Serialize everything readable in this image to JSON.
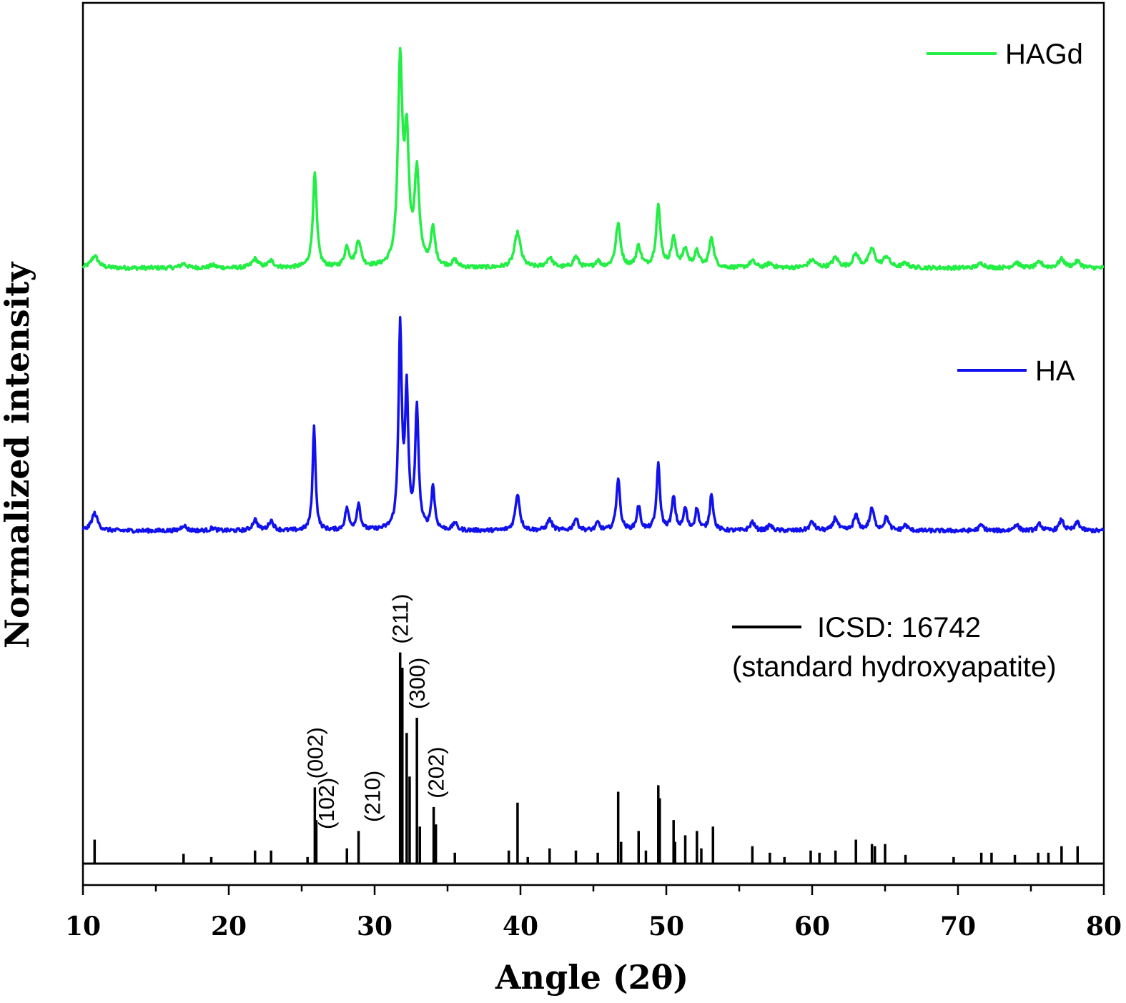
{
  "chart_data": {
    "type": "line",
    "xlabel": "Angle (2θ)",
    "ylabel": "Normalized intensity",
    "xlim": [
      10,
      80
    ],
    "xticks": [
      "10",
      "20",
      "30",
      "40",
      "50",
      "60",
      "70",
      "80"
    ],
    "ylim": [
      0,
      3.45
    ],
    "legend_position": "right",
    "series": [
      {
        "name": "HAGd",
        "legend": [
          "HAGd"
        ],
        "color": "#22ee44",
        "style": "line",
        "baseline": 2.38,
        "scale": 0.87,
        "peaks": [
          [
            10.8,
            0.055,
            0.3
          ],
          [
            16.9,
            0.02,
            0.25
          ],
          [
            18.9,
            0.012,
            0.25
          ],
          [
            21.8,
            0.04,
            0.25
          ],
          [
            22.9,
            0.03,
            0.25
          ],
          [
            25.9,
            0.43,
            0.16
          ],
          [
            28.1,
            0.09,
            0.2
          ],
          [
            28.9,
            0.12,
            0.2
          ],
          [
            31.75,
            0.92,
            0.18
          ],
          [
            32.2,
            0.55,
            0.18
          ],
          [
            32.9,
            0.42,
            0.2
          ],
          [
            34.0,
            0.17,
            0.18
          ],
          [
            35.5,
            0.03,
            0.2
          ],
          [
            39.8,
            0.16,
            0.25
          ],
          [
            42.0,
            0.045,
            0.25
          ],
          [
            43.8,
            0.05,
            0.22
          ],
          [
            45.3,
            0.03,
            0.2
          ],
          [
            46.7,
            0.2,
            0.2
          ],
          [
            48.1,
            0.095,
            0.2
          ],
          [
            49.45,
            0.28,
            0.18
          ],
          [
            50.5,
            0.13,
            0.2
          ],
          [
            51.3,
            0.08,
            0.2
          ],
          [
            52.1,
            0.07,
            0.2
          ],
          [
            53.1,
            0.14,
            0.18
          ],
          [
            55.9,
            0.03,
            0.25
          ],
          [
            57.1,
            0.02,
            0.25
          ],
          [
            60.0,
            0.035,
            0.3
          ],
          [
            61.6,
            0.045,
            0.25
          ],
          [
            63.0,
            0.06,
            0.25
          ],
          [
            64.1,
            0.085,
            0.25
          ],
          [
            65.1,
            0.05,
            0.25
          ],
          [
            66.4,
            0.02,
            0.25
          ],
          [
            71.6,
            0.02,
            0.3
          ],
          [
            74.0,
            0.025,
            0.25
          ],
          [
            75.6,
            0.025,
            0.25
          ],
          [
            77.1,
            0.04,
            0.25
          ],
          [
            78.2,
            0.03,
            0.25
          ]
        ]
      },
      {
        "name": "HA",
        "legend": [
          "HA"
        ],
        "color": "#1111ee",
        "style": "line",
        "baseline": 1.33,
        "scale": 0.87,
        "peaks": [
          [
            10.8,
            0.08,
            0.25
          ],
          [
            16.9,
            0.025,
            0.2
          ],
          [
            18.9,
            0.012,
            0.2
          ],
          [
            21.8,
            0.05,
            0.2
          ],
          [
            22.9,
            0.045,
            0.2
          ],
          [
            25.85,
            0.48,
            0.12
          ],
          [
            28.1,
            0.1,
            0.15
          ],
          [
            28.9,
            0.12,
            0.15
          ],
          [
            31.75,
            0.93,
            0.13
          ],
          [
            32.2,
            0.62,
            0.13
          ],
          [
            32.9,
            0.55,
            0.14
          ],
          [
            34.0,
            0.2,
            0.14
          ],
          [
            35.5,
            0.035,
            0.15
          ],
          [
            39.8,
            0.17,
            0.18
          ],
          [
            42.0,
            0.05,
            0.2
          ],
          [
            43.8,
            0.055,
            0.18
          ],
          [
            45.3,
            0.035,
            0.15
          ],
          [
            46.7,
            0.24,
            0.15
          ],
          [
            48.1,
            0.11,
            0.15
          ],
          [
            49.45,
            0.3,
            0.14
          ],
          [
            50.5,
            0.15,
            0.15
          ],
          [
            51.3,
            0.1,
            0.14
          ],
          [
            52.1,
            0.1,
            0.14
          ],
          [
            53.1,
            0.17,
            0.14
          ],
          [
            55.9,
            0.04,
            0.18
          ],
          [
            57.1,
            0.025,
            0.18
          ],
          [
            60.0,
            0.04,
            0.2
          ],
          [
            61.6,
            0.06,
            0.18
          ],
          [
            63.0,
            0.07,
            0.18
          ],
          [
            64.1,
            0.1,
            0.18
          ],
          [
            65.1,
            0.06,
            0.18
          ],
          [
            66.4,
            0.025,
            0.18
          ],
          [
            71.6,
            0.025,
            0.2
          ],
          [
            74.0,
            0.03,
            0.18
          ],
          [
            75.6,
            0.03,
            0.18
          ],
          [
            77.1,
            0.05,
            0.18
          ],
          [
            78.2,
            0.04,
            0.18
          ]
        ]
      },
      {
        "name": "ICSD: 16742",
        "legend": [
          "ICSD: 16742",
          "(standard hydroxyapatite)"
        ],
        "color": "#000000",
        "style": "sticks",
        "baseline": 0.0,
        "scale": 0.87,
        "peaks": [
          [
            10.8,
            0.11
          ],
          [
            16.9,
            0.045
          ],
          [
            18.8,
            0.03
          ],
          [
            21.8,
            0.06
          ],
          [
            22.9,
            0.06
          ],
          [
            25.4,
            0.03
          ],
          [
            25.9,
            0.35
          ],
          [
            26.0,
            0.2
          ],
          [
            28.1,
            0.07
          ],
          [
            28.9,
            0.15
          ],
          [
            31.75,
            0.97
          ],
          [
            31.9,
            0.9
          ],
          [
            32.2,
            0.6
          ],
          [
            32.4,
            0.4
          ],
          [
            32.9,
            0.67
          ],
          [
            33.1,
            0.17
          ],
          [
            34.05,
            0.26
          ],
          [
            34.2,
            0.18
          ],
          [
            35.5,
            0.05
          ],
          [
            39.2,
            0.06
          ],
          [
            39.8,
            0.28
          ],
          [
            40.5,
            0.03
          ],
          [
            42.0,
            0.07
          ],
          [
            43.8,
            0.06
          ],
          [
            45.3,
            0.05
          ],
          [
            46.7,
            0.33
          ],
          [
            46.9,
            0.1
          ],
          [
            48.1,
            0.15
          ],
          [
            48.6,
            0.06
          ],
          [
            49.45,
            0.36
          ],
          [
            49.55,
            0.3
          ],
          [
            50.5,
            0.2
          ],
          [
            50.6,
            0.1
          ],
          [
            51.3,
            0.13
          ],
          [
            52.1,
            0.15
          ],
          [
            52.4,
            0.07
          ],
          [
            53.2,
            0.17
          ],
          [
            55.9,
            0.08
          ],
          [
            57.1,
            0.05
          ],
          [
            58.1,
            0.03
          ],
          [
            59.9,
            0.06
          ],
          [
            60.5,
            0.05
          ],
          [
            61.6,
            0.06
          ],
          [
            63.0,
            0.11
          ],
          [
            64.1,
            0.09
          ],
          [
            64.3,
            0.08
          ],
          [
            65.0,
            0.09
          ],
          [
            66.4,
            0.04
          ],
          [
            69.7,
            0.03
          ],
          [
            71.6,
            0.05
          ],
          [
            72.3,
            0.05
          ],
          [
            73.9,
            0.04
          ],
          [
            75.5,
            0.05
          ],
          [
            76.2,
            0.05
          ],
          [
            77.1,
            0.08
          ],
          [
            78.2,
            0.08
          ]
        ]
      }
    ],
    "annotations": [
      {
        "text": "(002)",
        "x": 25.9
      },
      {
        "text": "(102)",
        "x": 28.1
      },
      {
        "text": "(210)",
        "x": 28.9
      },
      {
        "text": "(211)",
        "x": 31.75
      },
      {
        "text": "(300)",
        "x": 32.9
      },
      {
        "text": "(202)",
        "x": 34.05
      }
    ]
  }
}
